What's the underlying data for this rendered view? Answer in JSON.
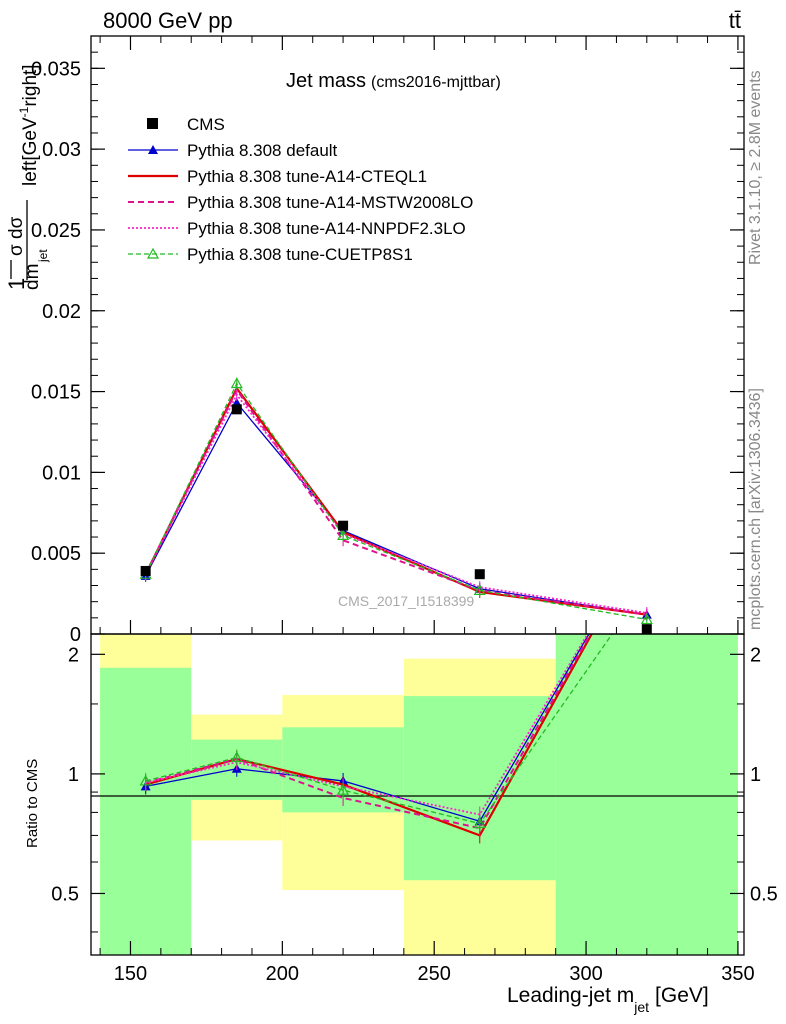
{
  "header": {
    "beam": "8000 GeV pp",
    "process": "tt̄"
  },
  "side": {
    "rivet": "Rivet 3.1.10, ≥ 2.8M events",
    "mcplots": "mcplots.cern.ch [arXiv:1306.3436]"
  },
  "chart_data": [
    {
      "type": "line",
      "title": "Jet mass",
      "subtitle": "(cms2016-mjttbar)",
      "watermark": "CMS_2017_I1518399",
      "ylabel": "1/σ dσ/dm_jet left[GeV⁻¹right]",
      "ylim": [
        0,
        0.037
      ],
      "xlim": [
        137,
        352
      ],
      "yticks": [
        0,
        0.005,
        0.01,
        0.015,
        0.02,
        0.025,
        0.03,
        0.035
      ],
      "ytick_labels": [
        "0",
        "0.005",
        "0.01",
        "0.015",
        "0.02",
        "0.025",
        "0.03",
        "0.035"
      ],
      "legend_position": "top-left",
      "data": {
        "name": "CMS",
        "x": [
          155,
          185,
          220,
          265,
          320
        ],
        "y": [
          0.0039,
          0.0139,
          0.0067,
          0.0037,
          0.0003
        ]
      },
      "series": [
        {
          "name": "Pythia 8.308 default",
          "color": "#0000cc",
          "style": "solid-triangle",
          "x": [
            155,
            185,
            220,
            265,
            320
          ],
          "y": [
            0.0036,
            0.0143,
            0.0064,
            0.0028,
            0.0012
          ]
        },
        {
          "name": "Pythia 8.308 tune-A14-CTEQL1",
          "color": "#dd0000",
          "style": "solid-thick",
          "x": [
            155,
            185,
            220,
            265,
            320
          ],
          "y": [
            0.0037,
            0.0152,
            0.0063,
            0.0026,
            0.0012
          ]
        },
        {
          "name": "Pythia 8.308 tune-A14-MSTW2008LO",
          "color": "#e0118f",
          "style": "dashed",
          "x": [
            155,
            185,
            220,
            265,
            320
          ],
          "y": [
            0.0037,
            0.0151,
            0.0058,
            0.0027,
            0.0012
          ]
        },
        {
          "name": "Pythia 8.308 tune-A14-NNPDF2.3LO",
          "color": "#ff22cc",
          "style": "dotted",
          "x": [
            155,
            185,
            220,
            265,
            320
          ],
          "y": [
            0.0037,
            0.0148,
            0.0062,
            0.0029,
            0.0013
          ]
        },
        {
          "name": "Pythia 8.308 tune-CUETP8S1",
          "color": "#22bb22",
          "style": "dashed-open-triangle",
          "x": [
            155,
            185,
            220,
            265,
            320
          ],
          "y": [
            0.0037,
            0.0155,
            0.0061,
            0.0027,
            0.0009
          ]
        }
      ]
    },
    {
      "type": "line",
      "ylabel": "Ratio to CMS",
      "xlabel": "Leading-jet m_jet [GeV]",
      "ylim": [
        0.35,
        2.25
      ],
      "xlim": [
        137,
        352
      ],
      "yticks": [
        0.5,
        1,
        2
      ],
      "ytick_labels": [
        "0.5",
        "1",
        "2"
      ],
      "xticks": [
        150,
        200,
        250,
        300,
        350
      ],
      "xtick_labels": [
        "150",
        "200",
        "250",
        "300",
        "350"
      ],
      "bands": [
        {
          "x0": 140,
          "x1": 170,
          "green": [
            0,
            1.85
          ],
          "yellow": [
            0,
            2.3
          ]
        },
        {
          "x0": 170,
          "x1": 200,
          "green": [
            0.86,
            1.22
          ],
          "yellow": [
            0.68,
            1.41
          ]
        },
        {
          "x0": 200,
          "x1": 240,
          "green": [
            0.8,
            1.31
          ],
          "yellow": [
            0.51,
            1.58
          ]
        },
        {
          "x0": 240,
          "x1": 290,
          "green": [
            0.54,
            1.57
          ],
          "yellow": [
            0,
            1.95
          ]
        },
        {
          "x0": 290,
          "x1": 350,
          "green": [
            0,
            2.3
          ],
          "yellow": [
            0,
            2.3
          ]
        }
      ],
      "series": [
        {
          "name": "Pythia 8.308 default",
          "color": "#0000cc",
          "style": "solid-triangle",
          "x": [
            155,
            185,
            220,
            265,
            320
          ],
          "y": [
            0.93,
            1.03,
            0.96,
            0.76,
            4.0
          ]
        },
        {
          "name": "Pythia 8.308 tune-A14-CTEQL1",
          "color": "#dd0000",
          "style": "solid-thick",
          "x": [
            155,
            185,
            220,
            265,
            320
          ],
          "y": [
            0.94,
            1.09,
            0.94,
            0.7,
            4.0
          ]
        },
        {
          "name": "Pythia 8.308 tune-A14-MSTW2008LO",
          "color": "#e0118f",
          "style": "dashed",
          "x": [
            155,
            185,
            220,
            265,
            320
          ],
          "y": [
            0.95,
            1.09,
            0.87,
            0.73,
            4.0
          ]
        },
        {
          "name": "Pythia 8.308 tune-A14-NNPDF2.3LO",
          "color": "#ff22cc",
          "style": "dotted",
          "x": [
            155,
            185,
            220,
            265,
            320
          ],
          "y": [
            0.95,
            1.07,
            0.93,
            0.79,
            4.0
          ]
        },
        {
          "name": "Pythia 8.308 tune-CUETP8S1",
          "color": "#22bb22",
          "style": "dashed-open-triangle",
          "x": [
            155,
            185,
            220,
            265,
            320
          ],
          "y": [
            0.96,
            1.1,
            0.91,
            0.75,
            3.0
          ]
        }
      ]
    }
  ]
}
